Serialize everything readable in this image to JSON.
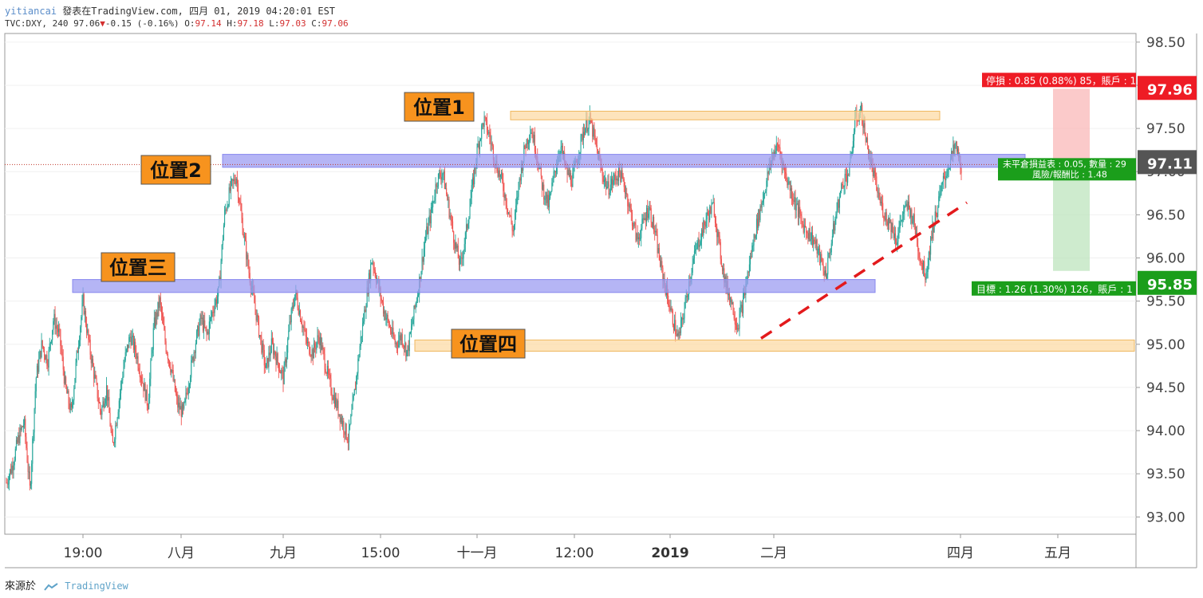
{
  "header": {
    "user": "yitiancai",
    "published_text": "發表在TradingView.com, 四月 01, 2019 04:20:01 EST",
    "symbol": "TVC:DXY, 240",
    "last": "97.06",
    "change": "-0.15 (-0.16%)",
    "open_label": "O:",
    "open": "97.14",
    "high_label": "H:",
    "high": "97.18",
    "low_label": "L:",
    "low": "97.03",
    "close_label": "C:",
    "close": "97.06"
  },
  "footer": {
    "source_label": "來源於",
    "brand": "TradingView"
  },
  "colors": {
    "up": "#26a69a",
    "down": "#ef5350",
    "blue_zone": "#9c9cf2",
    "orange_zone": "#fcd9a0",
    "label_bg": "#f7931e",
    "stop": "#ee1c25",
    "target": "#1b9e1b",
    "last": "#555555",
    "trend": "#e31a1c"
  },
  "chart_data": {
    "type": "candlestick",
    "symbol": "TVC:DXY",
    "interval": "240",
    "y_range": [
      92.8,
      98.6
    ],
    "y_ticks": [
      "98.50",
      "98.00",
      "97.50",
      "97.00",
      "96.50",
      "96.00",
      "95.50",
      "95.00",
      "94.50",
      "94.00",
      "93.50",
      "93.00"
    ],
    "x_labels": [
      {
        "label": "19:00",
        "bold": false
      },
      {
        "label": "八月",
        "bold": false
      },
      {
        "label": "九月",
        "bold": false
      },
      {
        "label": "15:00",
        "bold": false
      },
      {
        "label": "十一月",
        "bold": false
      },
      {
        "label": "12:00",
        "bold": false
      },
      {
        "label": "2019",
        "bold": true
      },
      {
        "label": "二月",
        "bold": false
      },
      {
        "label": "四月",
        "bold": false
      },
      {
        "label": "五月",
        "bold": false
      }
    ],
    "price_path": [
      93.4,
      93.6,
      93.9,
      94.1,
      93.3,
      94.6,
      95.0,
      94.8,
      95.3,
      95.1,
      94.5,
      94.2,
      94.9,
      95.5,
      95.0,
      94.6,
      94.2,
      94.5,
      93.8,
      94.3,
      94.8,
      95.1,
      94.9,
      94.6,
      94.3,
      95.2,
      95.5,
      95.0,
      94.7,
      94.3,
      94.2,
      94.6,
      95.0,
      95.3,
      95.1,
      95.4,
      95.6,
      96.5,
      96.8,
      96.95,
      96.4,
      95.9,
      95.5,
      95.1,
      94.7,
      95.0,
      94.8,
      94.6,
      95.2,
      95.6,
      95.3,
      95.0,
      94.9,
      95.1,
      94.8,
      94.5,
      94.3,
      94.1,
      93.9,
      94.4,
      95.0,
      95.5,
      96.0,
      95.7,
      95.4,
      95.2,
      95.0,
      95.1,
      94.9,
      95.3,
      95.7,
      96.2,
      96.5,
      96.9,
      97.0,
      96.6,
      96.2,
      95.9,
      96.3,
      96.8,
      97.3,
      97.6,
      97.4,
      97.1,
      96.9,
      96.6,
      96.3,
      96.9,
      97.3,
      97.5,
      97.2,
      96.8,
      96.6,
      97.0,
      97.3,
      97.0,
      96.9,
      97.2,
      97.5,
      97.6,
      97.3,
      97.0,
      96.8,
      96.9,
      97.0,
      96.8,
      96.5,
      96.2,
      96.4,
      96.6,
      96.3,
      95.9,
      95.6,
      95.3,
      95.05,
      95.4,
      95.8,
      96.1,
      96.3,
      96.5,
      96.6,
      96.1,
      95.7,
      95.5,
      95.2,
      95.5,
      95.9,
      96.3,
      96.6,
      96.9,
      97.2,
      97.3,
      97.0,
      96.8,
      96.6,
      96.4,
      96.3,
      96.2,
      96.0,
      95.8,
      96.2,
      96.6,
      96.9,
      97.0,
      97.6,
      97.7,
      97.3,
      97.0,
      96.7,
      96.5,
      96.4,
      96.2,
      96.5,
      96.6,
      96.4,
      96.0,
      95.8,
      96.3,
      96.6,
      96.9,
      97.1,
      97.3,
      97.06
    ],
    "price_scale_labels": {
      "stop": {
        "value": "97.96",
        "note": "停損 : 0.85 (0.88%) 85，賬戶 : 1"
      },
      "last": {
        "value": "97.11",
        "note_line1": "未平倉損益表 : 0.05, 數量 : 29",
        "note_line2": "風險/報酬比 : 1.48"
      },
      "target": {
        "value": "95.85",
        "note": "目標 : 1.26 (1.30%) 126，賬戶 : 1"
      }
    },
    "position_tool": {
      "entry": 97.11,
      "stop": 97.96,
      "target": 95.85
    },
    "annotations": [
      {
        "label": "位置1",
        "zone_color": "orange",
        "zone": [
          97.6,
          97.7
        ]
      },
      {
        "label": "位置2",
        "zone_color": "blue",
        "zone": [
          97.05,
          97.2
        ]
      },
      {
        "label": "位置三",
        "zone_color": "blue",
        "zone": [
          95.6,
          95.75
        ]
      },
      {
        "label": "位置四",
        "zone_color": "orange",
        "zone": [
          94.92,
          95.05
        ]
      }
    ],
    "trendline": {
      "style": "dashed",
      "from": 95.05,
      "to": 96.9
    },
    "grid": true
  }
}
